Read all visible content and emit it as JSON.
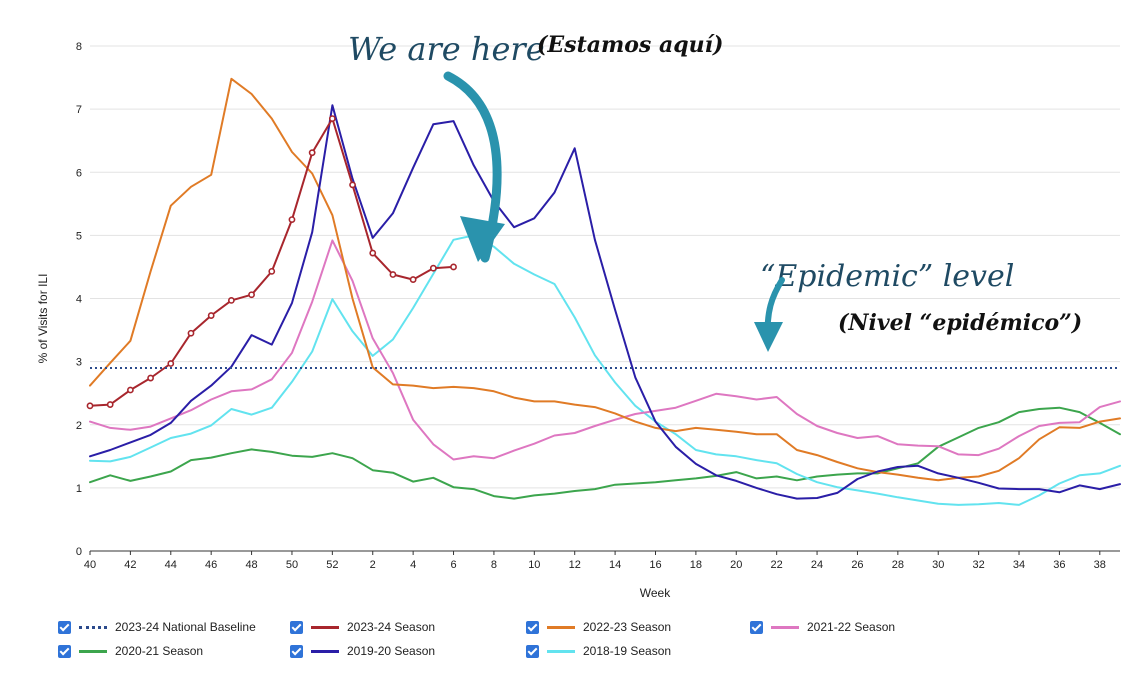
{
  "chart_data": {
    "type": "line",
    "ylabel": "% of Visits for ILI",
    "xlabel": "Week",
    "ylim": [
      0,
      8
    ],
    "y_ticks": [
      "0",
      "1",
      "2",
      "3",
      "4",
      "5",
      "6",
      "7",
      "8"
    ],
    "x_ticks": [
      "40",
      "42",
      "44",
      "46",
      "48",
      "50",
      "52",
      "2",
      "4",
      "6",
      "8",
      "10",
      "12",
      "14",
      "16",
      "18",
      "20",
      "22",
      "24",
      "26",
      "28",
      "30",
      "32",
      "34",
      "36",
      "38"
    ],
    "x_weeks": [
      "40",
      "41",
      "42",
      "43",
      "44",
      "45",
      "46",
      "47",
      "48",
      "49",
      "50",
      "51",
      "52",
      "1",
      "2",
      "3",
      "4",
      "5",
      "6",
      "7",
      "8",
      "9",
      "10",
      "11",
      "12",
      "13",
      "14",
      "15",
      "16",
      "17",
      "18",
      "19",
      "20",
      "21",
      "22",
      "23",
      "24",
      "25",
      "26",
      "27",
      "28",
      "29",
      "30",
      "31",
      "32",
      "33",
      "34",
      "35",
      "36",
      "37",
      "38",
      "39"
    ],
    "grid": "horizontal",
    "baseline": {
      "name": "2023-24 National Baseline",
      "value": 2.9,
      "color": "#2b4a8c"
    },
    "series": [
      {
        "name": "2023-24 Season",
        "color": "#a8262d",
        "markers": true,
        "values": [
          2.3,
          2.32,
          2.55,
          2.74,
          2.97,
          3.45,
          3.73,
          3.97,
          4.06,
          4.43,
          5.25,
          6.31,
          6.85,
          5.8,
          4.72,
          4.38,
          4.3,
          4.48,
          4.5
        ]
      },
      {
        "name": "2022-23 Season",
        "color": "#e07b26",
        "values": [
          2.62,
          2.98,
          3.33,
          4.43,
          5.47,
          5.77,
          5.96,
          7.48,
          7.24,
          6.85,
          6.32,
          5.98,
          5.32,
          4.0,
          2.91,
          2.64,
          2.62,
          2.58,
          2.6,
          2.58,
          2.53,
          2.43,
          2.37,
          2.37,
          2.32,
          2.28,
          2.18,
          2.05,
          1.95,
          1.9,
          1.95,
          1.92,
          1.89,
          1.85,
          1.85,
          1.6,
          1.52,
          1.41,
          1.31,
          1.25,
          1.21,
          1.16,
          1.12,
          1.16,
          1.18,
          1.27,
          1.47,
          1.77,
          1.96,
          1.95,
          2.05,
          2.1
        ]
      },
      {
        "name": "2021-22 Season",
        "color": "#de77c1",
        "values": [
          2.05,
          1.95,
          1.92,
          1.97,
          2.1,
          2.23,
          2.4,
          2.53,
          2.56,
          2.72,
          3.14,
          3.95,
          4.92,
          4.28,
          3.37,
          2.82,
          2.08,
          1.69,
          1.45,
          1.5,
          1.47,
          1.59,
          1.7,
          1.83,
          1.87,
          1.98,
          2.08,
          2.17,
          2.22,
          2.27,
          2.38,
          2.49,
          2.45,
          2.4,
          2.44,
          2.17,
          1.98,
          1.87,
          1.79,
          1.82,
          1.69,
          1.67,
          1.66,
          1.53,
          1.52,
          1.62,
          1.82,
          1.98,
          2.03,
          2.04,
          2.28,
          2.37
        ]
      },
      {
        "name": "2020-21 Season",
        "color": "#3ca54d",
        "values": [
          1.09,
          1.2,
          1.11,
          1.18,
          1.26,
          1.44,
          1.48,
          1.55,
          1.61,
          1.57,
          1.51,
          1.49,
          1.55,
          1.47,
          1.28,
          1.24,
          1.1,
          1.16,
          1.01,
          0.98,
          0.87,
          0.83,
          0.88,
          0.91,
          0.95,
          0.98,
          1.05,
          1.07,
          1.09,
          1.12,
          1.15,
          1.19,
          1.25,
          1.15,
          1.18,
          1.12,
          1.18,
          1.21,
          1.23,
          1.23,
          1.31,
          1.39,
          1.65,
          1.8,
          1.95,
          2.04,
          2.2,
          2.25,
          2.27,
          2.2,
          2.03,
          1.85
        ]
      },
      {
        "name": "2019-20 Season",
        "color": "#2a1ea7",
        "values": [
          1.5,
          1.6,
          1.72,
          1.84,
          2.03,
          2.38,
          2.62,
          2.92,
          3.42,
          3.27,
          3.93,
          5.05,
          7.06,
          5.9,
          4.96,
          5.35,
          6.07,
          6.76,
          6.81,
          6.11,
          5.54,
          5.13,
          5.27,
          5.68,
          6.38,
          4.93,
          3.82,
          2.75,
          2.05,
          1.65,
          1.38,
          1.2,
          1.11,
          1.0,
          0.9,
          0.83,
          0.84,
          0.92,
          1.14,
          1.26,
          1.33,
          1.35,
          1.23,
          1.16,
          1.08,
          0.99,
          0.98,
          0.98,
          0.93,
          1.04,
          0.98,
          1.06
        ]
      },
      {
        "name": "2018-19 Season",
        "color": "#62e3ef",
        "values": [
          1.43,
          1.42,
          1.49,
          1.64,
          1.79,
          1.86,
          1.99,
          2.25,
          2.16,
          2.27,
          2.68,
          3.16,
          3.99,
          3.48,
          3.09,
          3.35,
          3.85,
          4.39,
          4.93,
          5.0,
          4.82,
          4.55,
          4.38,
          4.23,
          3.7,
          3.1,
          2.67,
          2.3,
          2.05,
          1.85,
          1.6,
          1.53,
          1.5,
          1.44,
          1.39,
          1.22,
          1.09,
          1.01,
          0.96,
          0.91,
          0.85,
          0.8,
          0.75,
          0.73,
          0.74,
          0.76,
          0.73,
          0.88,
          1.07,
          1.2,
          1.23,
          1.35
        ]
      }
    ],
    "annotations": {
      "we_are_here": "We are here",
      "we_are_here_es": "(Estamos aquí)",
      "epidemic_level": "“Epidemic” level",
      "epidemic_level_es": "(Nivel “epidémico”)"
    }
  },
  "legend": [
    {
      "label": "2023-24 National Baseline",
      "color": "#2b4a8c",
      "style": "dotted"
    },
    {
      "label": "2023-24 Season",
      "color": "#a8262d",
      "style": "solid"
    },
    {
      "label": "2022-23 Season",
      "color": "#e07b26",
      "style": "solid"
    },
    {
      "label": "2021-22 Season",
      "color": "#de77c1",
      "style": "solid"
    },
    {
      "label": "2020-21 Season",
      "color": "#3ca54d",
      "style": "solid"
    },
    {
      "label": "2019-20 Season",
      "color": "#2a1ea7",
      "style": "solid"
    },
    {
      "label": "2018-19 Season",
      "color": "#62e3ef",
      "style": "solid"
    }
  ]
}
